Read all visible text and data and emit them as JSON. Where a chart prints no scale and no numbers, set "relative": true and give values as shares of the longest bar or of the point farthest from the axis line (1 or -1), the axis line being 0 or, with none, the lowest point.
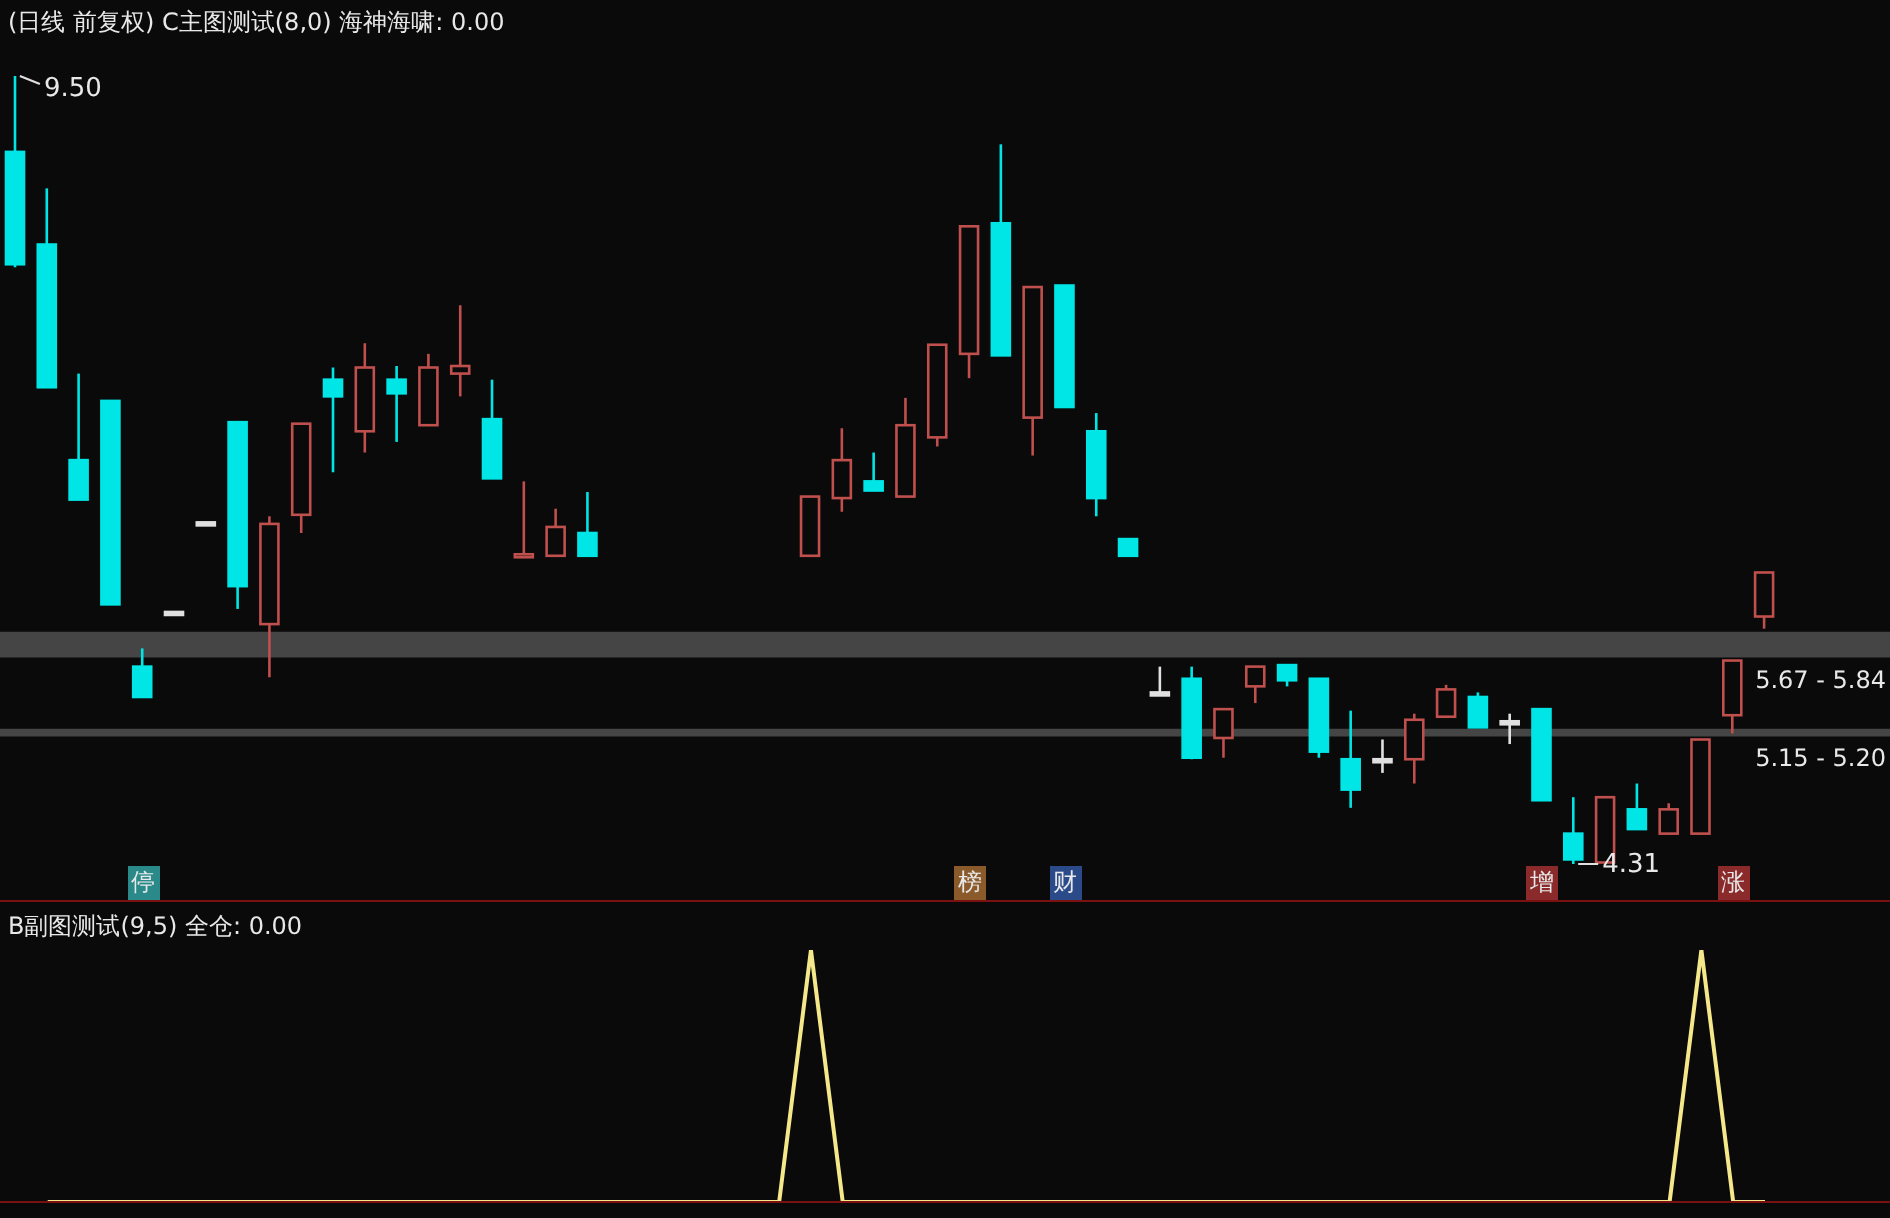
{
  "chart_data": [
    {
      "type": "candlestick",
      "title": "(日线 前复权) C主图测试(8,0) 海神海啸: 0.00",
      "categories": [
        null,
        null,
        null,
        null,
        null,
        null,
        null,
        null,
        null,
        null,
        null,
        null,
        null,
        null,
        null,
        null,
        null,
        null,
        null,
        null,
        null,
        null,
        null,
        null,
        null,
        null,
        null,
        null,
        null,
        null,
        null,
        null,
        null,
        null,
        null,
        null,
        null,
        null,
        null,
        null,
        null,
        null,
        null,
        null,
        null,
        null,
        null,
        null,
        null,
        null,
        null,
        null,
        null,
        null,
        null,
        null
      ],
      "ohlc": [
        [
          9.0,
          9.5,
          8.24,
          8.26
        ],
        [
          8.39,
          8.76,
          7.45,
          7.45
        ],
        [
          6.97,
          7.54,
          6.71,
          6.71
        ],
        [
          7.36,
          7.36,
          6.02,
          6.02
        ],
        [
          5.61,
          5.73,
          5.41,
          5.41
        ],
        [
          5.97,
          5.97,
          5.97,
          5.97
        ],
        [
          6.56,
          6.56,
          6.56,
          6.56
        ],
        [
          7.22,
          7.22,
          5.99,
          6.14
        ],
        [
          5.89,
          6.6,
          5.54,
          6.55
        ],
        [
          6.61,
          7.21,
          6.49,
          7.21
        ],
        [
          7.5,
          7.58,
          6.89,
          7.39
        ],
        [
          7.16,
          7.74,
          7.02,
          7.58
        ],
        [
          7.5,
          7.59,
          7.09,
          7.41
        ],
        [
          7.2,
          7.67,
          7.2,
          7.58
        ],
        [
          7.54,
          7.99,
          7.39,
          7.59
        ],
        [
          7.24,
          7.5,
          6.85,
          6.85
        ],
        [
          6.34,
          6.83,
          6.34,
          6.35
        ],
        [
          6.34,
          6.65,
          6.34,
          6.53
        ],
        [
          6.49,
          6.76,
          6.34,
          6.34
        ],
        null,
        null,
        null,
        null,
        null,
        null,
        [
          6.34,
          6.73,
          6.34,
          6.73
        ],
        [
          6.72,
          7.18,
          6.63,
          6.97
        ],
        [
          6.83,
          7.02,
          6.77,
          6.77
        ],
        [
          6.73,
          7.38,
          6.73,
          7.2
        ],
        [
          7.12,
          7.73,
          7.06,
          7.73
        ],
        [
          7.67,
          8.51,
          7.51,
          8.51
        ],
        [
          8.53,
          9.05,
          7.66,
          7.66
        ],
        [
          7.25,
          8.11,
          7.0,
          8.11
        ],
        [
          8.12,
          8.12,
          7.32,
          7.32
        ],
        [
          7.16,
          7.28,
          6.6,
          6.72
        ],
        [
          6.45,
          6.45,
          6.34,
          6.34
        ],
        [
          5.44,
          5.61,
          5.44,
          5.44
        ],
        [
          5.53,
          5.61,
          5.0,
          5.01
        ],
        [
          5.14,
          5.33,
          5.01,
          5.33
        ],
        [
          5.48,
          5.61,
          5.37,
          5.61
        ],
        [
          5.62,
          5.62,
          5.48,
          5.52
        ],
        [
          5.53,
          5.53,
          5.01,
          5.05
        ],
        [
          5.0,
          5.32,
          4.68,
          4.8
        ],
        [
          5.0,
          5.13,
          4.91,
          5.0
        ],
        [
          5.0,
          5.3,
          4.84,
          5.26
        ],
        [
          5.28,
          5.49,
          5.28,
          5.46
        ],
        [
          5.41,
          5.44,
          5.21,
          5.21
        ],
        [
          5.25,
          5.3,
          5.1,
          5.25
        ],
        [
          5.33,
          5.33,
          4.73,
          4.73
        ],
        [
          4.51,
          4.75,
          4.31,
          4.34
        ],
        [
          4.32,
          4.75,
          4.32,
          4.75
        ],
        [
          4.67,
          4.84,
          4.54,
          4.54
        ],
        [
          4.51,
          4.71,
          4.51,
          4.67
        ],
        [
          4.51,
          5.13,
          4.51,
          5.13
        ],
        [
          5.29,
          5.65,
          5.17,
          5.65
        ],
        [
          5.94,
          6.23,
          5.86,
          6.23
        ]
      ],
      "colors": [
        "#00e5e5",
        "#00e5e5",
        "#00e5e5",
        "#00e5e5",
        "#00e5e5",
        "#e0e0e0",
        "#e0e0e0",
        "#00e5e5",
        "#c0504d",
        "#c0504d",
        "#00e5e5",
        "#c0504d",
        "#00e5e5",
        "#c0504d",
        "#c0504d",
        "#00e5e5",
        "#c0504d",
        "#c0504d",
        "#00e5e5",
        null,
        null,
        null,
        null,
        null,
        null,
        "#c0504d",
        "#c0504d",
        "#00e5e5",
        "#c0504d",
        "#c0504d",
        "#c0504d",
        "#00e5e5",
        "#c0504d",
        "#00e5e5",
        "#00e5e5",
        "#00e5e5",
        "#e0e0e0",
        "#00e5e5",
        "#c0504d",
        "#c0504d",
        "#00e5e5",
        "#00e5e5",
        "#00e5e5",
        "#e0e0e0",
        "#c0504d",
        "#c0504d",
        "#00e5e5",
        "#e0e0e0",
        "#00e5e5",
        "#00e5e5",
        "#c0504d",
        "#00e5e5",
        "#c0504d",
        "#c0504d",
        "#c0504d",
        "#c0504d"
      ],
      "bands": [
        {
          "axis": "y",
          "from": 5.67,
          "to": 5.84,
          "label": "5.67 - 5.84",
          "color": "#b4b4b4"
        },
        {
          "axis": "y",
          "from": 5.15,
          "to": 5.2,
          "label": "5.15 - 5.20",
          "color": "#b4b4b4"
        }
      ],
      "annotations": [
        "9.50",
        "4.31",
        "停",
        "榜",
        "财",
        "增",
        "涨"
      ],
      "legend": false
    },
    {
      "type": "line",
      "title": "B副图测试(9,5) 全仓: 0.00",
      "relative": true,
      "categories": [
        null,
        null,
        null,
        null,
        null,
        null,
        null,
        null,
        null,
        null,
        null,
        null,
        null,
        null,
        null,
        null,
        null,
        null,
        null,
        null,
        null,
        null,
        null,
        null,
        null,
        null,
        null,
        null,
        null,
        null,
        null,
        null,
        null,
        null,
        null,
        null,
        null,
        null,
        null,
        null,
        null,
        null,
        null,
        null,
        null,
        null,
        null,
        null,
        null,
        null,
        null,
        null,
        null,
        null,
        null,
        null
      ],
      "series": [
        {
          "color": "#f5e88a",
          "values": [
            null,
            0,
            0,
            0,
            0,
            0,
            0,
            0,
            0,
            0,
            0,
            0,
            0,
            0,
            0,
            0,
            0,
            0,
            0,
            0,
            0,
            0,
            0,
            0,
            0,
            1,
            0,
            0,
            0,
            0,
            0,
            0,
            0,
            0,
            0,
            0,
            0,
            0,
            0,
            0,
            0,
            0,
            0,
            0,
            0,
            0,
            0,
            0,
            0,
            0,
            0,
            0,
            0,
            1,
            0,
            0
          ]
        }
      ],
      "legend": false
    }
  ]
}
